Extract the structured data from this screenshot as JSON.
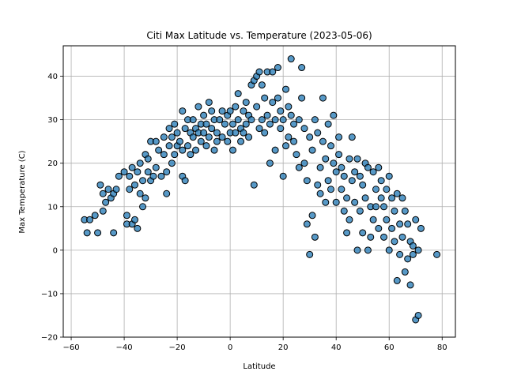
{
  "chart_data": {
    "type": "scatter",
    "title": "Citi Max Latitude vs. Temperature (2023-05-06)",
    "xlabel": "Latitude",
    "ylabel": "Max Temperature (C)",
    "xlim": [
      -63,
      85
    ],
    "ylim": [
      -20,
      47
    ],
    "xticks": [
      -60,
      -40,
      -20,
      0,
      20,
      40,
      60,
      80
    ],
    "yticks": [
      -20,
      -10,
      0,
      10,
      20,
      30,
      40
    ],
    "grid": true,
    "marker": {
      "fill": "#1f77b4",
      "edge": "#000000",
      "alpha": 0.75
    },
    "points": [
      [
        -55,
        7
      ],
      [
        -54,
        4
      ],
      [
        -53,
        7
      ],
      [
        -51,
        8
      ],
      [
        -50,
        4
      ],
      [
        -49,
        15
      ],
      [
        -48,
        9
      ],
      [
        -48,
        13
      ],
      [
        -47,
        11
      ],
      [
        -46,
        14
      ],
      [
        -45,
        12
      ],
      [
        -44,
        4
      ],
      [
        -44,
        13
      ],
      [
        -43,
        14
      ],
      [
        -42,
        17
      ],
      [
        -40,
        18
      ],
      [
        -39,
        8
      ],
      [
        -39,
        6
      ],
      [
        -38,
        14
      ],
      [
        -38,
        17
      ],
      [
        -37,
        19
      ],
      [
        -37,
        6
      ],
      [
        -36,
        15
      ],
      [
        -36,
        7
      ],
      [
        -35,
        5
      ],
      [
        -35,
        18
      ],
      [
        -34,
        20
      ],
      [
        -34,
        13
      ],
      [
        -33,
        16
      ],
      [
        -33,
        10
      ],
      [
        -32,
        22
      ],
      [
        -32,
        12
      ],
      [
        -31,
        18
      ],
      [
        -31,
        21
      ],
      [
        -30,
        25
      ],
      [
        -30,
        16
      ],
      [
        -29,
        17
      ],
      [
        -28,
        25
      ],
      [
        -28,
        19
      ],
      [
        -27,
        23
      ],
      [
        -26,
        17
      ],
      [
        -25,
        22
      ],
      [
        -25,
        26
      ],
      [
        -24,
        18
      ],
      [
        -24,
        13
      ],
      [
        -23,
        24
      ],
      [
        -23,
        28
      ],
      [
        -22,
        20
      ],
      [
        -22,
        26
      ],
      [
        -21,
        22
      ],
      [
        -21,
        29
      ],
      [
        -20,
        24
      ],
      [
        -20,
        27
      ],
      [
        -19,
        25
      ],
      [
        -18,
        32
      ],
      [
        -18,
        23
      ],
      [
        -18,
        17
      ],
      [
        -17,
        28
      ],
      [
        -17,
        16
      ],
      [
        -16,
        24
      ],
      [
        -16,
        30
      ],
      [
        -15,
        27
      ],
      [
        -15,
        22
      ],
      [
        -14,
        26
      ],
      [
        -14,
        30
      ],
      [
        -13,
        28
      ],
      [
        -13,
        23
      ],
      [
        -12,
        27
      ],
      [
        -12,
        33
      ],
      [
        -11,
        29
      ],
      [
        -11,
        25
      ],
      [
        -10,
        31
      ],
      [
        -10,
        27
      ],
      [
        -9,
        24
      ],
      [
        -9,
        29
      ],
      [
        -8,
        34
      ],
      [
        -8,
        26
      ],
      [
        -7,
        28
      ],
      [
        -7,
        32
      ],
      [
        -6,
        23
      ],
      [
        -6,
        30
      ],
      [
        -5,
        27
      ],
      [
        -5,
        25
      ],
      [
        -4,
        30
      ],
      [
        -3,
        32
      ],
      [
        -3,
        26
      ],
      [
        -2,
        29
      ],
      [
        -1,
        31
      ],
      [
        -1,
        25
      ],
      [
        0,
        27
      ],
      [
        0,
        32
      ],
      [
        1,
        29
      ],
      [
        1,
        23
      ],
      [
        2,
        33
      ],
      [
        2,
        27
      ],
      [
        3,
        30
      ],
      [
        3,
        36
      ],
      [
        4,
        28
      ],
      [
        4,
        25
      ],
      [
        5,
        32
      ],
      [
        5,
        27
      ],
      [
        6,
        34
      ],
      [
        6,
        29
      ],
      [
        7,
        31
      ],
      [
        7,
        26
      ],
      [
        8,
        38
      ],
      [
        8,
        30
      ],
      [
        9,
        39
      ],
      [
        9,
        15
      ],
      [
        10,
        40
      ],
      [
        10,
        33
      ],
      [
        11,
        41
      ],
      [
        11,
        28
      ],
      [
        12,
        38
      ],
      [
        12,
        30
      ],
      [
        13,
        35
      ],
      [
        13,
        27
      ],
      [
        14,
        41
      ],
      [
        14,
        31
      ],
      [
        15,
        29
      ],
      [
        15,
        20
      ],
      [
        16,
        34
      ],
      [
        16,
        41
      ],
      [
        17,
        30
      ],
      [
        17,
        23
      ],
      [
        18,
        42
      ],
      [
        18,
        35
      ],
      [
        19,
        28
      ],
      [
        19,
        32
      ],
      [
        20,
        17
      ],
      [
        20,
        30
      ],
      [
        21,
        37
      ],
      [
        21,
        24
      ],
      [
        22,
        33
      ],
      [
        22,
        26
      ],
      [
        23,
        44
      ],
      [
        23,
        31
      ],
      [
        24,
        29
      ],
      [
        24,
        25
      ],
      [
        25,
        22
      ],
      [
        26,
        30
      ],
      [
        26,
        19
      ],
      [
        27,
        42
      ],
      [
        27,
        35
      ],
      [
        28,
        28
      ],
      [
        28,
        20
      ],
      [
        29,
        16
      ],
      [
        29,
        6
      ],
      [
        30,
        26
      ],
      [
        30,
        -1
      ],
      [
        31,
        23
      ],
      [
        31,
        8
      ],
      [
        32,
        30
      ],
      [
        32,
        3
      ],
      [
        33,
        27
      ],
      [
        33,
        15
      ],
      [
        34,
        19
      ],
      [
        34,
        13
      ],
      [
        35,
        35
      ],
      [
        35,
        25
      ],
      [
        36,
        21
      ],
      [
        36,
        11
      ],
      [
        37,
        29
      ],
      [
        37,
        16
      ],
      [
        38,
        24
      ],
      [
        38,
        14
      ],
      [
        39,
        31
      ],
      [
        39,
        20
      ],
      [
        40,
        18
      ],
      [
        40,
        11
      ],
      [
        41,
        26
      ],
      [
        41,
        22
      ],
      [
        42,
        19
      ],
      [
        42,
        14
      ],
      [
        43,
        17
      ],
      [
        43,
        9
      ],
      [
        44,
        12
      ],
      [
        44,
        4
      ],
      [
        45,
        21
      ],
      [
        45,
        7
      ],
      [
        46,
        26
      ],
      [
        46,
        16
      ],
      [
        47,
        18
      ],
      [
        47,
        11
      ],
      [
        48,
        21
      ],
      [
        48,
        0
      ],
      [
        49,
        17
      ],
      [
        49,
        9
      ],
      [
        50,
        15
      ],
      [
        50,
        4
      ],
      [
        51,
        20
      ],
      [
        51,
        12
      ],
      [
        52,
        19
      ],
      [
        52,
        0
      ],
      [
        53,
        10
      ],
      [
        53,
        3
      ],
      [
        54,
        18
      ],
      [
        54,
        7
      ],
      [
        55,
        14
      ],
      [
        55,
        10
      ],
      [
        56,
        19
      ],
      [
        56,
        5
      ],
      [
        57,
        16
      ],
      [
        57,
        12
      ],
      [
        58,
        10
      ],
      [
        58,
        3
      ],
      [
        59,
        14
      ],
      [
        59,
        7
      ],
      [
        60,
        17
      ],
      [
        60,
        0
      ],
      [
        61,
        12
      ],
      [
        61,
        5
      ],
      [
        62,
        9
      ],
      [
        62,
        2
      ],
      [
        63,
        13
      ],
      [
        63,
        -7
      ],
      [
        64,
        6
      ],
      [
        64,
        -1
      ],
      [
        65,
        12
      ],
      [
        65,
        3
      ],
      [
        66,
        9
      ],
      [
        66,
        -5
      ],
      [
        67,
        6
      ],
      [
        67,
        -2
      ],
      [
        68,
        2
      ],
      [
        68,
        -8
      ],
      [
        69,
        1
      ],
      [
        69,
        -1
      ],
      [
        70,
        -16
      ],
      [
        70,
        7
      ],
      [
        71,
        0
      ],
      [
        71,
        -15
      ],
      [
        72,
        5
      ],
      [
        78,
        -1
      ]
    ]
  }
}
